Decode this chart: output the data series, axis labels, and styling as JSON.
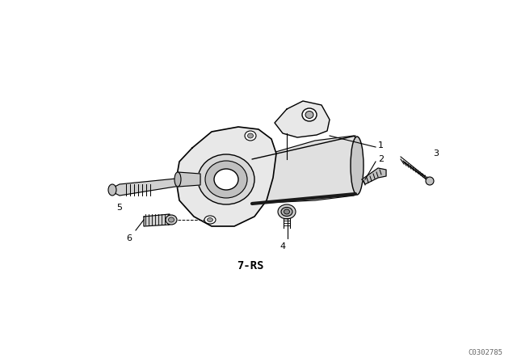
{
  "background_color": "#ffffff",
  "watermark": "C0302785",
  "part_label": "7-RS",
  "line_color": "#000000",
  "light_gray": "#d8d8d8",
  "mid_gray": "#b0b0b0",
  "dark_gray": "#808080",
  "font_size_labels": 8,
  "font_size_watermark": 6.5,
  "font_size_part_label": 10
}
